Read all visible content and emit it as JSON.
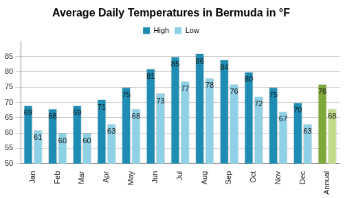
{
  "chart_data": {
    "type": "bar",
    "title": "Average Daily Temperatures in Bermuda in °F",
    "categories": [
      "Jan",
      "Feb",
      "Mar",
      "Apr",
      "May",
      "Jun",
      "Jul",
      "Aug",
      "Sep",
      "Oct",
      "Nov",
      "Dec",
      "Annual"
    ],
    "series": [
      {
        "name": "High",
        "color": "#1f8db3",
        "colors": [
          "#1f8db3",
          "#1f8db3",
          "#1f8db3",
          "#1f8db3",
          "#1f8db3",
          "#1f8db3",
          "#1f8db3",
          "#1f8db3",
          "#1f8db3",
          "#1f8db3",
          "#1f8db3",
          "#1f8db3",
          "#7ea83a"
        ],
        "values": [
          69,
          68,
          69,
          71,
          75,
          81,
          85,
          86,
          84,
          80,
          75,
          70,
          76
        ]
      },
      {
        "name": "Low",
        "color": "#8ed0e6",
        "colors": [
          "#8ed0e6",
          "#8ed0e6",
          "#8ed0e6",
          "#8ed0e6",
          "#8ed0e6",
          "#8ed0e6",
          "#8ed0e6",
          "#8ed0e6",
          "#8ed0e6",
          "#8ed0e6",
          "#8ed0e6",
          "#8ed0e6",
          "#c3dc8c"
        ],
        "values": [
          61,
          60,
          60,
          63,
          68,
          73,
          77,
          78,
          76,
          72,
          67,
          63,
          68
        ]
      }
    ],
    "ylim": [
      50,
      90
    ],
    "yticks": [
      50,
      55,
      60,
      65,
      70,
      75,
      80,
      85
    ],
    "grid": true,
    "legend": "top",
    "data_labels": true
  }
}
